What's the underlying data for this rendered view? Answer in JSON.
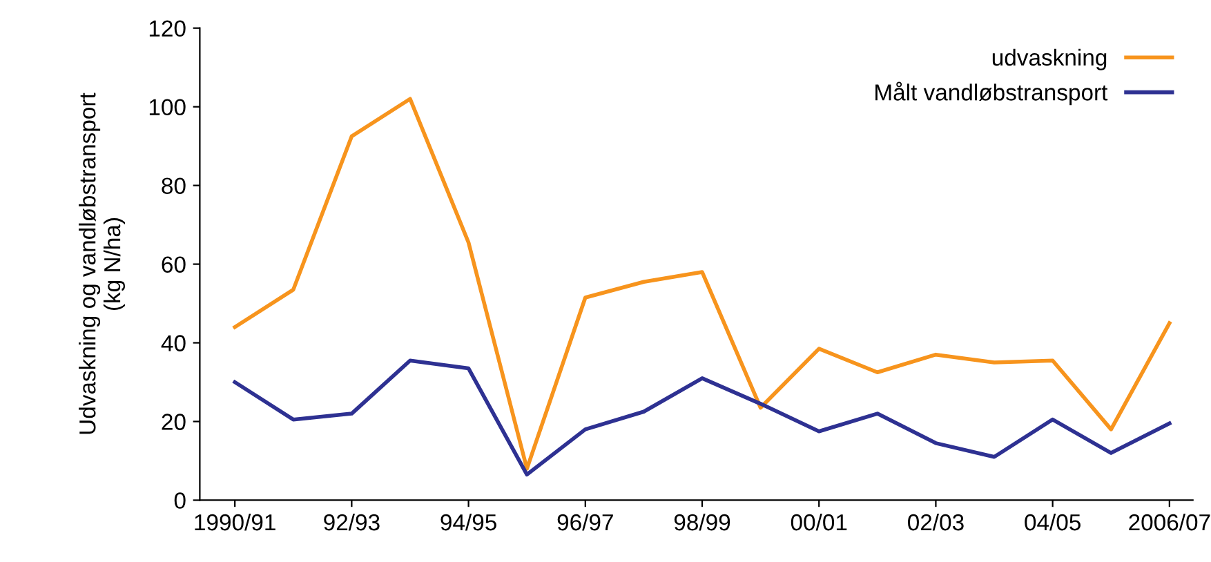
{
  "chart_data": {
    "type": "line",
    "ylabel": "Udvaskning og vandløbstransport\n(kg N/ha)",
    "categories": [
      "1990/91",
      null,
      "92/93",
      null,
      "94/95",
      null,
      "96/97",
      null,
      "98/99",
      null,
      "00/01",
      null,
      "02/03",
      null,
      "04/05",
      null,
      "2006/07"
    ],
    "series": [
      {
        "name": "udvaskning",
        "color": "#f7941d",
        "values": [
          44,
          53.5,
          92.5,
          102,
          65.5,
          8,
          51.5,
          55.5,
          58,
          23.5,
          38.5,
          32.5,
          37,
          35,
          35.5,
          18,
          45
        ]
      },
      {
        "name": "Målt vandløbstransport",
        "color": "#2e3192",
        "values": [
          30,
          20.5,
          22,
          35.5,
          33.5,
          6.5,
          18,
          22.5,
          31,
          24.5,
          17.5,
          22,
          14.5,
          11,
          20.5,
          12,
          19.5
        ]
      }
    ],
    "ylim": [
      0,
      120
    ],
    "yticks": [
      0,
      20,
      40,
      60,
      80,
      100,
      120
    ],
    "grid": false,
    "legend": "top right",
    "marker": "none",
    "line_style": "solid"
  }
}
